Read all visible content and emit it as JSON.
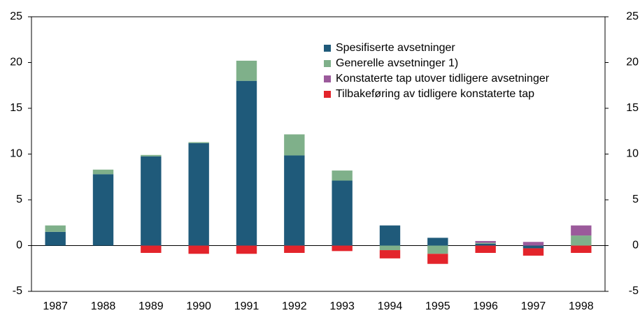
{
  "chart_data": {
    "type": "stacked-bar",
    "categories": [
      "1987",
      "1988",
      "1989",
      "1990",
      "1991",
      "1992",
      "1993",
      "1994",
      "1995",
      "1996",
      "1997",
      "1998"
    ],
    "series": [
      {
        "name": "Spesifiserte avsetninger",
        "color": "#1f5a7a",
        "values": [
          1.5,
          7.8,
          9.75,
          11.2,
          18.0,
          9.85,
          7.1,
          2.2,
          0.85,
          0.2,
          -0.3,
          0
        ]
      },
      {
        "name": "Generelle avsetninger 1)",
        "color": "#7fb08a",
        "values": [
          0.7,
          0.5,
          0.15,
          0.1,
          2.2,
          2.3,
          1.1,
          -0.5,
          -0.9,
          0.1,
          0,
          1.1
        ]
      },
      {
        "name": "Konstaterte tap utover tidligere avsetninger",
        "color": "#9b5a9b",
        "values": [
          0,
          0,
          0,
          0,
          0,
          0,
          0,
          0,
          0,
          0.2,
          0.4,
          1.1
        ]
      },
      {
        "name": "Tilbakeføring av tidligere konstaterte tap",
        "color": "#e3242b",
        "values": [
          0,
          0,
          -0.8,
          -0.9,
          -0.9,
          -0.8,
          -0.6,
          -0.9,
          -1.1,
          -0.8,
          -0.8,
          -0.8
        ]
      }
    ],
    "ylim": [
      -5,
      25
    ],
    "yticks": [
      -5,
      0,
      5,
      10,
      15,
      20,
      25
    ],
    "legend": "upper right"
  }
}
